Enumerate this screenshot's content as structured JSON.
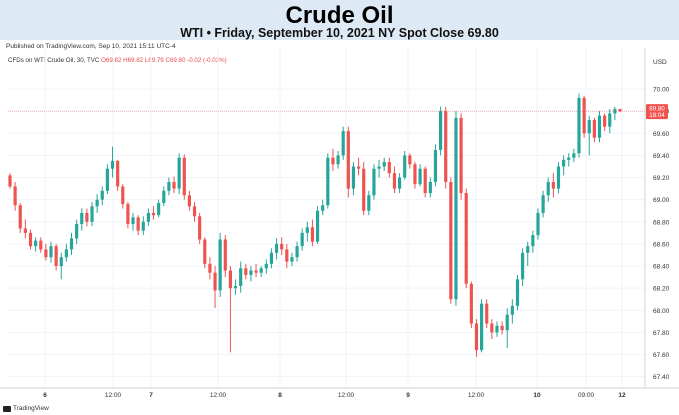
{
  "header": {
    "title": "Crude Oil",
    "subtitle": "WTI • Friday, September 10, 2021 NY Spot Close 69.80"
  },
  "published": "Published on TradingView.com, Sep 10, 2021 15:11 UTC-4",
  "legend": {
    "symbol": "CFDs on WTI Crude Oil, 30, TVC",
    "o": "O69.82",
    "h": "H69.82",
    "l": "L69.79",
    "c": "C69.80",
    "chg": "-0.02 (-0.03%)"
  },
  "footer": {
    "logo_text": "TradingView"
  },
  "colors": {
    "up": "#26a69a",
    "down": "#ef5350",
    "header_bg": "#dde9f5",
    "last_price_bg": "#ef5350"
  },
  "chart_data": {
    "type": "candlestick",
    "currency_label": "USD",
    "ylim": [
      67.35,
      70.12
    ],
    "y_ticks": [
      "70.00",
      "69.80",
      "69.60",
      "69.40",
      "69.20",
      "69.00",
      "68.80",
      "68.60",
      "68.40",
      "68.20",
      "68.00",
      "67.80",
      "67.60",
      "67.40"
    ],
    "x_ticks": [
      "6",
      "12:00",
      "7",
      "12:00",
      "8",
      "12:00",
      "9",
      "12:00",
      "10",
      "09:00",
      "12"
    ],
    "last_price": {
      "value": "69.80",
      "countdown": "18:04"
    },
    "candles": [
      [
        69.22,
        69.24,
        69.1,
        69.12
      ],
      [
        69.12,
        69.16,
        68.9,
        68.95
      ],
      [
        68.95,
        68.97,
        68.7,
        68.74
      ],
      [
        68.74,
        68.82,
        68.65,
        68.7
      ],
      [
        68.7,
        68.73,
        68.55,
        68.58
      ],
      [
        68.58,
        68.66,
        68.53,
        68.63
      ],
      [
        68.63,
        68.66,
        68.52,
        68.55
      ],
      [
        68.55,
        68.6,
        68.45,
        68.48
      ],
      [
        68.48,
        68.62,
        68.43,
        68.58
      ],
      [
        68.58,
        68.6,
        68.36,
        68.4
      ],
      [
        68.4,
        68.52,
        68.28,
        68.48
      ],
      [
        68.48,
        68.6,
        68.44,
        68.55
      ],
      [
        68.55,
        68.7,
        68.5,
        68.65
      ],
      [
        68.65,
        68.82,
        68.6,
        68.78
      ],
      [
        68.78,
        68.92,
        68.72,
        68.88
      ],
      [
        68.88,
        68.92,
        68.76,
        68.8
      ],
      [
        68.8,
        68.98,
        68.76,
        68.94
      ],
      [
        68.94,
        69.05,
        68.88,
        69.0
      ],
      [
        69.0,
        69.12,
        68.95,
        69.08
      ],
      [
        69.08,
        69.32,
        69.05,
        69.28
      ],
      [
        69.28,
        69.48,
        69.2,
        69.35
      ],
      [
        69.35,
        69.36,
        69.08,
        69.12
      ],
      [
        69.12,
        69.14,
        68.92,
        68.96
      ],
      [
        68.96,
        68.98,
        68.74,
        68.78
      ],
      [
        68.78,
        68.88,
        68.72,
        68.84
      ],
      [
        68.84,
        68.86,
        68.68,
        68.72
      ],
      [
        68.72,
        68.85,
        68.68,
        68.8
      ],
      [
        68.8,
        68.92,
        68.76,
        68.88
      ],
      [
        68.88,
        68.94,
        68.82,
        68.86
      ],
      [
        68.86,
        69.0,
        68.84,
        68.97
      ],
      [
        68.97,
        69.12,
        68.94,
        69.08
      ],
      [
        69.08,
        69.2,
        69.04,
        69.16
      ],
      [
        69.16,
        69.21,
        69.06,
        69.1
      ],
      [
        69.1,
        69.42,
        69.05,
        69.38
      ],
      [
        69.38,
        69.41,
        69.0,
        69.04
      ],
      [
        69.04,
        69.08,
        68.9,
        68.94
      ],
      [
        68.94,
        68.98,
        68.8,
        68.85
      ],
      [
        68.85,
        68.88,
        68.6,
        68.64
      ],
      [
        68.64,
        68.66,
        68.38,
        68.42
      ],
      [
        68.42,
        68.48,
        68.28,
        68.34
      ],
      [
        68.34,
        68.4,
        68.02,
        68.18
      ],
      [
        68.18,
        68.7,
        68.12,
        68.64
      ],
      [
        68.64,
        68.68,
        68.3,
        68.36
      ],
      [
        68.36,
        68.4,
        67.62,
        68.2
      ],
      [
        68.2,
        68.28,
        68.14,
        68.22
      ],
      [
        68.22,
        68.44,
        68.16,
        68.38
      ],
      [
        68.38,
        68.42,
        68.28,
        68.32
      ],
      [
        68.32,
        68.4,
        68.26,
        68.36
      ],
      [
        68.36,
        68.42,
        68.3,
        68.34
      ],
      [
        68.34,
        68.4,
        68.3,
        68.38
      ],
      [
        68.38,
        68.46,
        68.33,
        68.42
      ],
      [
        68.42,
        68.56,
        68.38,
        68.52
      ],
      [
        68.52,
        68.65,
        68.46,
        68.6
      ],
      [
        68.6,
        68.66,
        68.5,
        68.55
      ],
      [
        68.55,
        68.6,
        68.38,
        68.44
      ],
      [
        68.44,
        68.52,
        68.4,
        68.48
      ],
      [
        68.48,
        68.62,
        68.44,
        68.58
      ],
      [
        68.58,
        68.74,
        68.54,
        68.7
      ],
      [
        68.7,
        68.8,
        68.62,
        68.75
      ],
      [
        68.75,
        68.82,
        68.58,
        68.62
      ],
      [
        68.62,
        68.94,
        68.6,
        68.9
      ],
      [
        68.9,
        69.0,
        68.86,
        68.95
      ],
      [
        68.95,
        69.42,
        68.92,
        69.38
      ],
      [
        69.38,
        69.46,
        69.26,
        69.32
      ],
      [
        69.32,
        69.44,
        69.28,
        69.4
      ],
      [
        69.4,
        69.66,
        69.36,
        69.62
      ],
      [
        69.62,
        69.66,
        69.02,
        69.1
      ],
      [
        69.1,
        69.34,
        69.04,
        69.3
      ],
      [
        69.3,
        69.38,
        69.22,
        69.28
      ],
      [
        69.28,
        69.34,
        68.86,
        68.9
      ],
      [
        68.9,
        69.08,
        68.86,
        69.04
      ],
      [
        69.04,
        69.32,
        69.0,
        69.28
      ],
      [
        69.28,
        69.36,
        69.2,
        69.3
      ],
      [
        69.3,
        69.38,
        69.26,
        69.34
      ],
      [
        69.34,
        69.38,
        69.2,
        69.24
      ],
      [
        69.24,
        69.3,
        69.06,
        69.1
      ],
      [
        69.1,
        69.24,
        69.06,
        69.2
      ],
      [
        69.2,
        69.44,
        69.18,
        69.4
      ],
      [
        69.4,
        69.42,
        69.28,
        69.32
      ],
      [
        69.32,
        69.34,
        69.1,
        69.14
      ],
      [
        69.14,
        69.32,
        69.12,
        69.28
      ],
      [
        69.28,
        69.3,
        69.02,
        69.06
      ],
      [
        69.06,
        69.2,
        69.02,
        69.16
      ],
      [
        69.16,
        69.5,
        69.12,
        69.45
      ],
      [
        69.45,
        69.84,
        69.4,
        69.8
      ],
      [
        69.8,
        69.84,
        69.1,
        69.16
      ],
      [
        69.16,
        69.2,
        68.06,
        68.1
      ],
      [
        68.1,
        69.8,
        68.04,
        69.74
      ],
      [
        69.74,
        69.78,
        69.0,
        69.06
      ],
      [
        69.06,
        69.1,
        68.2,
        68.24
      ],
      [
        68.24,
        68.26,
        67.84,
        67.88
      ],
      [
        67.88,
        67.92,
        67.58,
        67.64
      ],
      [
        67.64,
        68.1,
        67.62,
        68.06
      ],
      [
        68.06,
        68.1,
        67.84,
        67.88
      ],
      [
        67.88,
        67.92,
        67.74,
        67.8
      ],
      [
        67.8,
        67.9,
        67.76,
        67.86
      ],
      [
        67.86,
        67.9,
        67.78,
        67.82
      ],
      [
        67.82,
        68.02,
        67.66,
        67.96
      ],
      [
        67.96,
        68.1,
        67.88,
        68.04
      ],
      [
        68.04,
        68.32,
        68.0,
        68.28
      ],
      [
        68.28,
        68.56,
        68.22,
        68.52
      ],
      [
        68.52,
        68.62,
        68.4,
        68.58
      ],
      [
        68.58,
        68.72,
        68.52,
        68.68
      ],
      [
        68.68,
        68.92,
        68.64,
        68.88
      ],
      [
        68.88,
        69.08,
        68.84,
        69.04
      ],
      [
        69.04,
        69.2,
        68.98,
        69.16
      ],
      [
        69.16,
        69.24,
        69.02,
        69.1
      ],
      [
        69.1,
        69.34,
        69.06,
        69.3
      ],
      [
        69.3,
        69.4,
        69.22,
        69.36
      ],
      [
        69.36,
        69.42,
        69.3,
        69.38
      ],
      [
        69.38,
        69.46,
        69.34,
        69.42
      ],
      [
        69.42,
        69.96,
        69.38,
        69.92
      ],
      [
        69.92,
        69.94,
        69.56,
        69.6
      ],
      [
        69.6,
        69.76,
        69.4,
        69.72
      ],
      [
        69.72,
        69.74,
        69.52,
        69.56
      ],
      [
        69.56,
        69.8,
        69.52,
        69.76
      ],
      [
        69.76,
        69.78,
        69.62,
        69.66
      ],
      [
        69.66,
        69.82,
        69.6,
        69.78
      ],
      [
        69.78,
        69.84,
        69.72,
        69.82
      ],
      [
        69.82,
        69.82,
        69.79,
        69.8
      ]
    ]
  }
}
